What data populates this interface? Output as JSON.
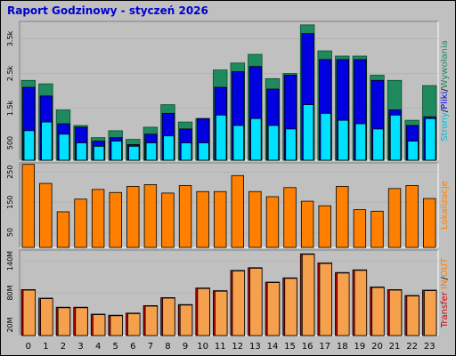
{
  "title": "Raport Godzinowy -  styczeń 2026",
  "chart_data": [
    {
      "type": "bar",
      "panel": "strony-pliki-wywolania",
      "categories": [
        "0",
        "1",
        "2",
        "3",
        "4",
        "5",
        "6",
        "7",
        "8",
        "9",
        "10",
        "11",
        "12",
        "13",
        "14",
        "15",
        "16",
        "17",
        "18",
        "19",
        "20",
        "21",
        "22",
        "23"
      ],
      "series": [
        {
          "name": "Wywołania",
          "color": "#1f8a5e",
          "values": [
            2300,
            2200,
            1450,
            1000,
            650,
            850,
            600,
            950,
            1600,
            1100,
            1200,
            2600,
            2800,
            3050,
            2350,
            2500,
            3900,
            3150,
            3000,
            3000,
            2450,
            2300,
            1150,
            2150
          ]
        },
        {
          "name": "Pliki",
          "color": "#0000e0",
          "values": [
            2100,
            1850,
            1050,
            950,
            550,
            650,
            450,
            750,
            1350,
            900,
            1200,
            2100,
            2550,
            2700,
            2050,
            2450,
            3650,
            2900,
            2900,
            2900,
            2300,
            1450,
            1000,
            1250
          ]
        },
        {
          "name": "Strony",
          "color": "#00e0ff",
          "values": [
            850,
            1100,
            750,
            500,
            400,
            550,
            400,
            500,
            700,
            500,
            500,
            1300,
            1000,
            1200,
            1000,
            900,
            1600,
            1350,
            1150,
            1050,
            900,
            1300,
            550,
            1200
          ]
        }
      ],
      "yticks": [
        "500",
        "1.5k",
        "2.5k",
        "3.5k"
      ],
      "ytick_values": [
        500,
        1500,
        2500,
        3500
      ],
      "ylim": [
        0,
        4000
      ],
      "side_label": [
        "Strony",
        "/",
        "Pliki",
        "/",
        "Wywołania"
      ],
      "side_colors": [
        "#00bcd4",
        "#000000",
        "#0000e0",
        "#000000",
        "#1f8a5e"
      ]
    },
    {
      "type": "bar",
      "panel": "lokalizacje",
      "categories": [
        "0",
        "1",
        "2",
        "3",
        "4",
        "5",
        "6",
        "7",
        "8",
        "9",
        "10",
        "11",
        "12",
        "13",
        "14",
        "15",
        "16",
        "17",
        "18",
        "19",
        "20",
        "21",
        "22",
        "23"
      ],
      "series": [
        {
          "name": "Lokalizacje",
          "color": "#ff7f00",
          "values": [
            275,
            212,
            118,
            160,
            192,
            182,
            202,
            208,
            180,
            205,
            185,
            185,
            238,
            185,
            168,
            198,
            153,
            138,
            202,
            125,
            120,
            195,
            205,
            162
          ]
        }
      ],
      "yticks": [
        "50",
        "150",
        "250"
      ],
      "ytick_values": [
        50,
        150,
        250
      ],
      "ylim": [
        0,
        280
      ],
      "side_label": [
        "Lokalizacje"
      ],
      "side_colors": [
        "#ff7f00"
      ]
    },
    {
      "type": "bar",
      "panel": "transfer",
      "categories": [
        "0",
        "1",
        "2",
        "3",
        "4",
        "5",
        "6",
        "7",
        "8",
        "9",
        "10",
        "11",
        "12",
        "13",
        "14",
        "15",
        "16",
        "17",
        "18",
        "19",
        "20",
        "21",
        "22",
        "23"
      ],
      "series": [
        {
          "name": "IN",
          "color": "#cc0000",
          "values": [
            86,
            70,
            53,
            53,
            40,
            38,
            42,
            56,
            71,
            58,
            89,
            84,
            122,
            127,
            100,
            108,
            153,
            136,
            118,
            123,
            91,
            86,
            75,
            85
          ]
        },
        {
          "name": "OUT",
          "color": "#f5a04d",
          "values": [
            85,
            69,
            52,
            52,
            39,
            37,
            41,
            55,
            70,
            57,
            88,
            83,
            121,
            126,
            99,
            107,
            152,
            135,
            117,
            122,
            90,
            85,
            74,
            84
          ]
        }
      ],
      "yticks": [
        "20M",
        "80M",
        "140M"
      ],
      "ytick_values": [
        20,
        80,
        140
      ],
      "ylim": [
        0,
        160
      ],
      "side_label": [
        "Transfer",
        "IN",
        "/",
        "OUT"
      ],
      "side_colors": [
        "#cc0000",
        "#ff7f00",
        "#000000",
        "#ff7f00"
      ]
    }
  ]
}
